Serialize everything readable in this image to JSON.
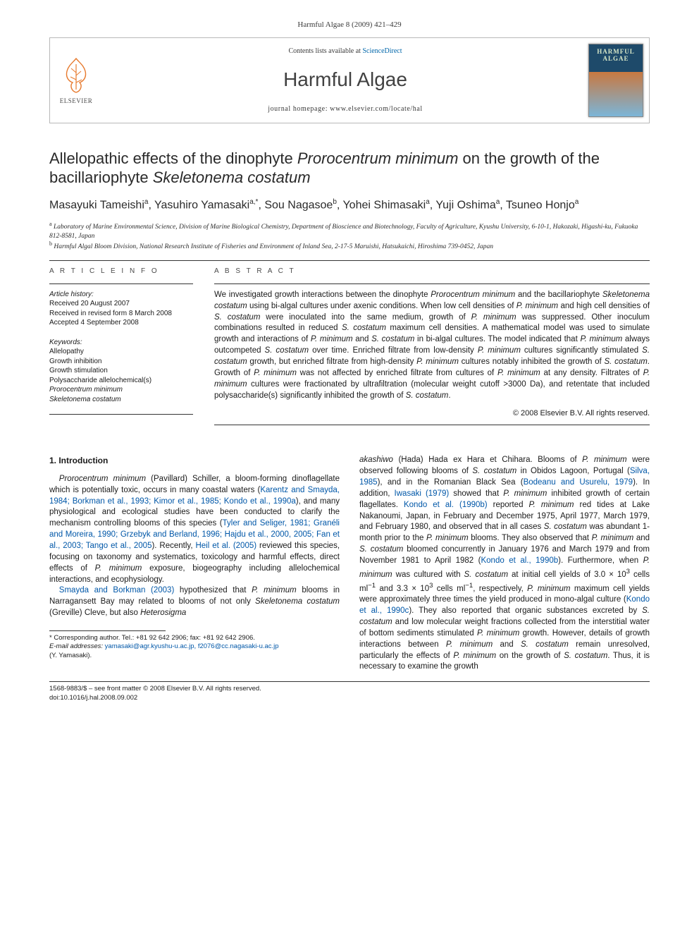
{
  "running_head": "Harmful Algae 8 (2009) 421–429",
  "header": {
    "contents_prefix": "Contents lists available at ",
    "contents_link": "ScienceDirect",
    "journal_name": "Harmful Algae",
    "homepage_label": "journal homepage: www.elsevier.com/locate/hal",
    "publisher": "ELSEVIER",
    "cover_title": "HARMFUL ALGAE"
  },
  "title_plain_prefix": "Allelopathic effects of the dinophyte ",
  "title_sp1": "Prorocentrum minimum",
  "title_mid": " on the growth of the bacillariophyte ",
  "title_sp2": "Skeletonema costatum",
  "authors_html": "Masayuki Tameishi<sup>a</sup>, Yasuhiro Yamasaki<sup>a,*</sup>, Sou Nagasoe<sup>b</sup>, Yohei Shimasaki<sup>a</sup>, Yuji Oshima<sup>a</sup>, Tsuneo Honjo<sup>a</sup>",
  "affiliations": {
    "a": "Laboratory of Marine Environmental Science, Division of Marine Biological Chemistry, Department of Bioscience and Biotechnology, Faculty of Agriculture, Kyushu University, 6-10-1, Hakozaki, Higashi-ku, Fukuoka 812-8581, Japan",
    "b": "Harmful Algal Bloom Division, National Research Institute of Fisheries and Environment of Inland Sea, 2-17-5 Maruishi, Hatsukaichi, Hiroshima 739-0452, Japan"
  },
  "article_info": {
    "label": "A R T I C L E   I N F O",
    "history_hd": "Article history:",
    "received": "Received 20 August 2007",
    "revised": "Received in revised form 8 March 2008",
    "accepted": "Accepted 4 September 2008",
    "keywords_hd": "Keywords:",
    "keywords": [
      "Allelopathy",
      "Growth inhibition",
      "Growth stimulation",
      "Polysaccharide allelochemical(s)"
    ],
    "keywords_italic": [
      "Prorocentrum minimum",
      "Skeletonema costatum"
    ]
  },
  "abstract": {
    "label": "A B S T R A C T",
    "text_parts": [
      "We investigated growth interactions between the dinophyte ",
      "Prorocentrum minimum",
      " and the bacillariophyte ",
      "Skeletonema costatum",
      " using bi-algal cultures under axenic conditions. When low cell densities of ",
      "P. minimum",
      " and high cell densities of ",
      "S. costatum",
      " were inoculated into the same medium, growth of ",
      "P. minimum",
      " was suppressed. Other inoculum combinations resulted in reduced ",
      "S. costatum",
      " maximum cell densities. A mathematical model was used to simulate growth and interactions of ",
      "P. minimum",
      " and ",
      "S. costatum",
      " in bi-algal cultures. The model indicated that ",
      "P. minimum",
      " always outcompeted ",
      "S. costatum",
      " over time. Enriched filtrate from low-density ",
      "P. minimum",
      " cultures significantly stimulated ",
      "S. costatum",
      " growth, but enriched filtrate from high-density ",
      "P. minimum",
      " cultures notably inhibited the growth of ",
      "S. costatum",
      ". Growth of ",
      "P. minimum",
      " was not affected by enriched filtrate from cultures of ",
      "P. minimum",
      " at any density. Filtrates of ",
      "P. minimum",
      " cultures were fractionated by ultrafiltration (molecular weight cutoff >3000 Da), and retentate that included polysaccharide(s) significantly inhibited the growth of ",
      "S. costatum",
      "."
    ],
    "copyright": "© 2008 Elsevier B.V. All rights reserved."
  },
  "intro": {
    "heading": "1. Introduction",
    "para1_parts": [
      {
        "t": "Prorocentrum minimum",
        "cls": "sp"
      },
      {
        "t": " (Pavillard) Schiller, a bloom-forming dinoflagellate which is potentially toxic, occurs in many coastal waters ("
      },
      {
        "t": "Karentz and Smayda, 1984; Borkman et al., 1993; Kimor et al., 1985; Kondo et al., 1990a",
        "cls": "cite"
      },
      {
        "t": "), and many physiological and ecological studies have been conducted to clarify the mechanism controlling blooms of this species ("
      },
      {
        "t": "Tyler and Seliger, 1981; Granéli and Moreira, 1990; Grzebyk and Berland, 1996; Hajdu et al., 2000, 2005; Fan et al., 2003; Tango et al., 2005",
        "cls": "cite"
      },
      {
        "t": "). Recently, "
      },
      {
        "t": "Heil et al. (2005)",
        "cls": "cite"
      },
      {
        "t": " reviewed this species, focusing on taxonomy and systematics, toxicology and harmful effects, direct effects of "
      },
      {
        "t": "P. minimum",
        "cls": "sp"
      },
      {
        "t": " exposure, biogeography including allelochemical interactions, and ecophysiology."
      }
    ],
    "para2_parts": [
      {
        "t": "Smayda and Borkman (2003)",
        "cls": "cite"
      },
      {
        "t": " hypothesized that "
      },
      {
        "t": "P. minimum",
        "cls": "sp"
      },
      {
        "t": " blooms in Narragansett Bay may related to blooms of not only "
      },
      {
        "t": "Skeletonema costatum",
        "cls": "sp"
      },
      {
        "t": " (Greville) Cleve, but also "
      },
      {
        "t": "Heterosigma ",
        "cls": "sp"
      }
    ],
    "para2b_parts": [
      {
        "t": "akashiwo",
        "cls": "sp"
      },
      {
        "t": " (Hada) Hada ex Hara et Chihara. Blooms of "
      },
      {
        "t": "P. minimum",
        "cls": "sp"
      },
      {
        "t": " were observed following blooms of "
      },
      {
        "t": "S. costatum",
        "cls": "sp"
      },
      {
        "t": " in Obidos Lagoon, Portugal ("
      },
      {
        "t": "Silva, 1985",
        "cls": "cite"
      },
      {
        "t": "), and in the Romanian Black Sea ("
      },
      {
        "t": "Bodeanu and Usurelu, 1979",
        "cls": "cite"
      },
      {
        "t": "). In addition, "
      },
      {
        "t": "Iwasaki (1979)",
        "cls": "cite"
      },
      {
        "t": " showed that "
      },
      {
        "t": "P. minimum",
        "cls": "sp"
      },
      {
        "t": " inhibited growth of certain flagellates. "
      },
      {
        "t": "Kondo et al. (1990b)",
        "cls": "cite"
      },
      {
        "t": " reported "
      },
      {
        "t": "P. minimum",
        "cls": "sp"
      },
      {
        "t": " red tides at Lake Nakanoumi, Japan, in February and December 1975, April 1977, March 1979, and February 1980, and observed that in all cases "
      },
      {
        "t": "S. costatum",
        "cls": "sp"
      },
      {
        "t": " was abundant 1-month prior to the "
      },
      {
        "t": "P. minimum",
        "cls": "sp"
      },
      {
        "t": " blooms. They also observed that "
      },
      {
        "t": "P. minimum",
        "cls": "sp"
      },
      {
        "t": " and "
      },
      {
        "t": "S. costatum",
        "cls": "sp"
      },
      {
        "t": " bloomed concurrently in January 1976 and March 1979 and from November 1981 to April 1982 ("
      },
      {
        "t": "Kondo et al., 1990b",
        "cls": "cite"
      },
      {
        "t": "). Furthermore, when "
      },
      {
        "t": "P. minimum",
        "cls": "sp"
      },
      {
        "t": " was cultured with "
      },
      {
        "t": "S. costatum",
        "cls": "sp"
      },
      {
        "t": " at initial cell yields of 3.0 × 10"
      },
      {
        "t": "3",
        "cls": "sup"
      },
      {
        "t": " cells ml"
      },
      {
        "t": "−1",
        "cls": "sup"
      },
      {
        "t": " and 3.3 × 10"
      },
      {
        "t": "3",
        "cls": "sup"
      },
      {
        "t": " cells ml"
      },
      {
        "t": "−1",
        "cls": "sup"
      },
      {
        "t": ", respectively, "
      },
      {
        "t": "P. minimum",
        "cls": "sp"
      },
      {
        "t": " maximum cell yields were approximately three times the yield produced in mono-algal culture ("
      },
      {
        "t": "Kondo et al., 1990c",
        "cls": "cite"
      },
      {
        "t": "). They also reported that organic substances excreted by "
      },
      {
        "t": "S. costatum",
        "cls": "sp"
      },
      {
        "t": " and low molecular weight fractions collected from the interstitial water of bottom sediments stimulated "
      },
      {
        "t": "P. minimum",
        "cls": "sp"
      },
      {
        "t": " growth. However, details of growth interactions between "
      },
      {
        "t": "P. minimum",
        "cls": "sp"
      },
      {
        "t": " and "
      },
      {
        "t": "S. costatum",
        "cls": "sp"
      },
      {
        "t": " remain unresolved, particularly the effects of "
      },
      {
        "t": "P. minimum",
        "cls": "sp"
      },
      {
        "t": " on the growth of "
      },
      {
        "t": "S. costatum",
        "cls": "sp"
      },
      {
        "t": ". Thus, it is necessary to examine the growth"
      }
    ]
  },
  "footnote": {
    "corr": "* Corresponding author. Tel.: +81 92 642 2906; fax: +81 92 642 2906.",
    "email_label": "E-mail addresses:",
    "emails": " yamasaki@agr.kyushu-u.ac.jp, f2076@cc.nagasaki-u.ac.jp",
    "email_who": "(Y. Yamasaki)."
  },
  "footer": {
    "line1": "1568-9883/$ – see front matter © 2008 Elsevier B.V. All rights reserved.",
    "line2": "doi:10.1016/j.hal.2008.09.002"
  },
  "colors": {
    "link": "#0057a8",
    "text": "#1a1a1a",
    "rule": "#343434"
  }
}
